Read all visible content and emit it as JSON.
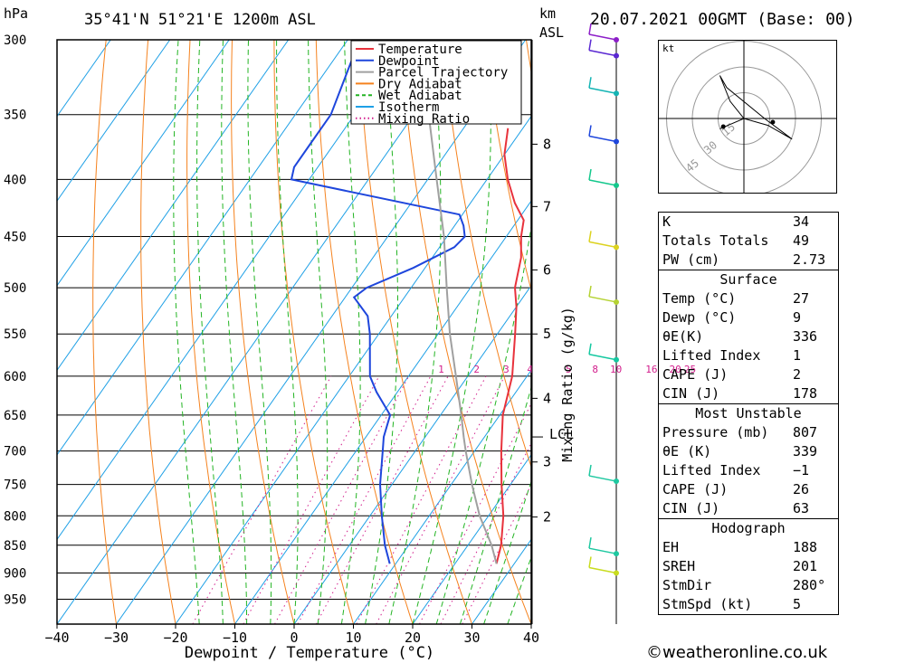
{
  "header": {
    "pressure_unit": "hPa",
    "location": "35°41'N 51°21'E 1200m ASL",
    "height_unit": "km",
    "height_ref": "ASL",
    "datetime": "20.07.2021 00GMT (Base: 00)"
  },
  "chart_data": {
    "type": "line",
    "subtype": "skew-T log-P diagram",
    "xlabel": "Dewpoint / Temperature (°C)",
    "ylabel": "hPa",
    "xlim": [
      -40,
      40
    ],
    "ylim": [
      1000,
      300
    ],
    "y_scale": "log",
    "x_ticks": [
      -40,
      -30,
      -20,
      -10,
      0,
      10,
      20,
      30,
      40
    ],
    "x_tick_labels": [
      "−40",
      "−30",
      "−20",
      "−10",
      "0",
      "10",
      "20",
      "30",
      "40"
    ],
    "pressure_levels": [
      300,
      350,
      400,
      450,
      500,
      550,
      600,
      650,
      700,
      750,
      800,
      850,
      900,
      950
    ],
    "height_ticks_km": [
      {
        "label": "8",
        "p": 372
      },
      {
        "label": "7",
        "p": 423
      },
      {
        "label": "6",
        "p": 482
      },
      {
        "label": "5",
        "p": 550
      },
      {
        "label": "4",
        "p": 628
      },
      {
        "label": "3",
        "p": 716
      },
      {
        "label": "2",
        "p": 802
      }
    ],
    "lcl": {
      "label": "LCL",
      "p": 680
    },
    "mixing_ratio_axis_label": "Mixing Ratio (g/kg)",
    "mixing_ratio_labels": [
      "1",
      "2",
      "3",
      "4",
      "5",
      "8",
      "10",
      "16",
      "20",
      "25"
    ],
    "mixing_ratio_label_x_at_600": [
      -4.5,
      1.5,
      6.5,
      10.5,
      17,
      21.5,
      25,
      31,
      35,
      37.5
    ],
    "legend": {
      "placement": "top",
      "entries": [
        {
          "name": "Temperature",
          "color": "#e8323c",
          "dash": "solid"
        },
        {
          "name": "Dewpoint",
          "color": "#1e46dc",
          "dash": "solid"
        },
        {
          "name": "Parcel Trajectory",
          "color": "#a0a0a0",
          "dash": "solid"
        },
        {
          "name": "Dry Adiabat",
          "color": "#f5821e",
          "dash": "solid"
        },
        {
          "name": "Wet Adiabat",
          "color": "#23b423",
          "dash": "dash"
        },
        {
          "name": "Isotherm",
          "color": "#1ea0e6",
          "dash": "solid"
        },
        {
          "name": "Mixing Ratio",
          "color": "#d21e8c",
          "dash": "dot"
        }
      ]
    },
    "series": [
      {
        "name": "Temperature",
        "color": "#e8323c",
        "points": [
          [
            883,
            27
          ],
          [
            850,
            25.6
          ],
          [
            800,
            22.5
          ],
          [
            750,
            18.5
          ],
          [
            700,
            14.5
          ],
          [
            650,
            10.5
          ],
          [
            600,
            7.5
          ],
          [
            550,
            3
          ],
          [
            520,
            0
          ],
          [
            500,
            -2.5
          ],
          [
            470,
            -5
          ],
          [
            450,
            -7.5
          ],
          [
            435,
            -9
          ],
          [
            420,
            -12.5
          ],
          [
            400,
            -16.5
          ],
          [
            380,
            -20
          ],
          [
            360,
            -22.5
          ]
        ]
      },
      {
        "name": "Dewpoint",
        "color": "#1e46dc",
        "points": [
          [
            883,
            9
          ],
          [
            850,
            6
          ],
          [
            800,
            2
          ],
          [
            750,
            -2
          ],
          [
            700,
            -5.5
          ],
          [
            680,
            -7
          ],
          [
            650,
            -8.5
          ],
          [
            620,
            -13.5
          ],
          [
            600,
            -16.5
          ],
          [
            550,
            -21.5
          ],
          [
            530,
            -24
          ],
          [
            510,
            -28.5
          ],
          [
            500,
            -27.5
          ],
          [
            480,
            -22
          ],
          [
            460,
            -17.5
          ],
          [
            450,
            -17
          ],
          [
            440,
            -18.5
          ],
          [
            430,
            -20.5
          ],
          [
            400,
            -53
          ],
          [
            390,
            -54
          ],
          [
            370,
            -54
          ],
          [
            350,
            -54
          ],
          [
            300,
            -58
          ]
        ]
      },
      {
        "name": "Parcel Trajectory",
        "color": "#a0a0a0",
        "points": [
          [
            883,
            27
          ],
          [
            850,
            24
          ],
          [
            800,
            18.5
          ],
          [
            750,
            13.5
          ],
          [
            700,
            8.5
          ],
          [
            680,
            6.5
          ],
          [
            650,
            3.5
          ],
          [
            600,
            -2
          ],
          [
            550,
            -8
          ],
          [
            500,
            -14
          ],
          [
            450,
            -20.5
          ],
          [
            400,
            -28.5
          ],
          [
            350,
            -37.5
          ],
          [
            300,
            -48
          ]
        ]
      }
    ]
  },
  "wind_profile": [
    {
      "p": 300,
      "color": "#8c1ec8"
    },
    {
      "p": 310,
      "color": "#5a28d2"
    },
    {
      "p": 335,
      "color": "#14b4b4"
    },
    {
      "p": 370,
      "color": "#1e46dc"
    },
    {
      "p": 405,
      "color": "#14c88c"
    },
    {
      "p": 460,
      "color": "#dcd21e"
    },
    {
      "p": 515,
      "color": "#b4d232"
    },
    {
      "p": 580,
      "color": "#14c8a0"
    },
    {
      "p": 745,
      "color": "#1ec8a0"
    },
    {
      "p": 865,
      "color": "#1ec8a0"
    },
    {
      "p": 900,
      "color": "#c8dc1e"
    }
  ],
  "hodograph": {
    "unit": "kt",
    "ring_labels": [
      "15",
      "30",
      "45"
    ],
    "trace_kt": [
      [
        0,
        0
      ],
      [
        -8,
        10
      ],
      [
        -14,
        25
      ],
      [
        -10,
        18
      ],
      [
        12,
        0
      ],
      [
        28,
        -12
      ],
      [
        14,
        -4
      ],
      [
        0,
        0
      ],
      [
        -14,
        -6
      ]
    ]
  },
  "indices": {
    "rows1": [
      {
        "label": "K",
        "value": "34"
      },
      {
        "label": "Totals Totals",
        "value": "49"
      },
      {
        "label": "PW (cm)",
        "value": "2.73"
      }
    ],
    "surface_title": "Surface",
    "surface": [
      {
        "label": "Temp (°C)",
        "value": "27"
      },
      {
        "label": "Dewp (°C)",
        "value": "9"
      },
      {
        "label": "θE(K)",
        "value": "336"
      },
      {
        "label": "Lifted Index",
        "value": "1"
      },
      {
        "label": "CAPE (J)",
        "value": "2"
      },
      {
        "label": "CIN (J)",
        "value": "178"
      }
    ],
    "mu_title": "Most Unstable",
    "mu": [
      {
        "label": "Pressure (mb)",
        "value": "807"
      },
      {
        "label": "θE (K)",
        "value": "339"
      },
      {
        "label": "Lifted Index",
        "value": "−1"
      },
      {
        "label": "CAPE (J)",
        "value": "26"
      },
      {
        "label": "CIN (J)",
        "value": "63"
      }
    ],
    "hodo_title": "Hodograph",
    "hodo": [
      {
        "label": "EH",
        "value": "188"
      },
      {
        "label": "SREH",
        "value": "201"
      },
      {
        "label": "StmDir",
        "value": "280°"
      },
      {
        "label": "StmSpd (kt)",
        "value": "5"
      }
    ]
  },
  "footer": "©weatheronline.co.uk"
}
